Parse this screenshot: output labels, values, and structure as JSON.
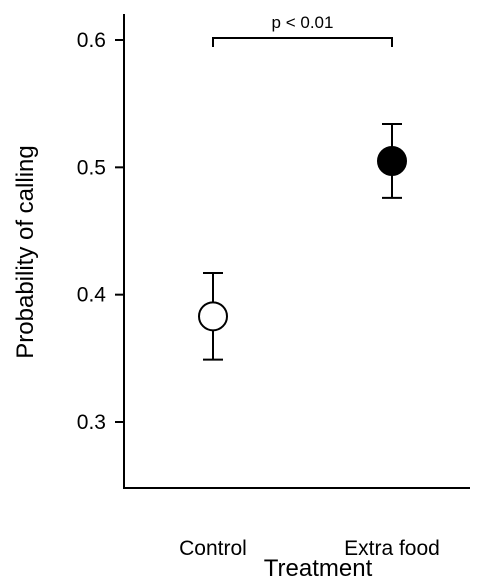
{
  "chart_data": {
    "type": "scatter",
    "xlabel": "Treatment",
    "ylabel": "Probability of calling",
    "ylim": [
      0.27,
      0.62
    ],
    "y_ticks": [
      0.3,
      0.4,
      0.5,
      0.6
    ],
    "y_tick_labels": [
      "0.3",
      "0.4",
      "0.5",
      "0.6"
    ],
    "categories": [
      "Control",
      "Extra food"
    ],
    "points": [
      {
        "category": "Control",
        "value": 0.383,
        "error_low": 0.349,
        "error_high": 0.417,
        "marker": "open circle",
        "color": "#ffffff"
      },
      {
        "category": "Extra food",
        "value": 0.505,
        "error_low": 0.476,
        "error_high": 0.534,
        "marker": "filled circle",
        "color": "#000000"
      }
    ],
    "annotation": {
      "text": "p < 0.01",
      "between": [
        "Control",
        "Extra food"
      ],
      "y": 0.6
    },
    "grid": false,
    "legend": "none"
  }
}
